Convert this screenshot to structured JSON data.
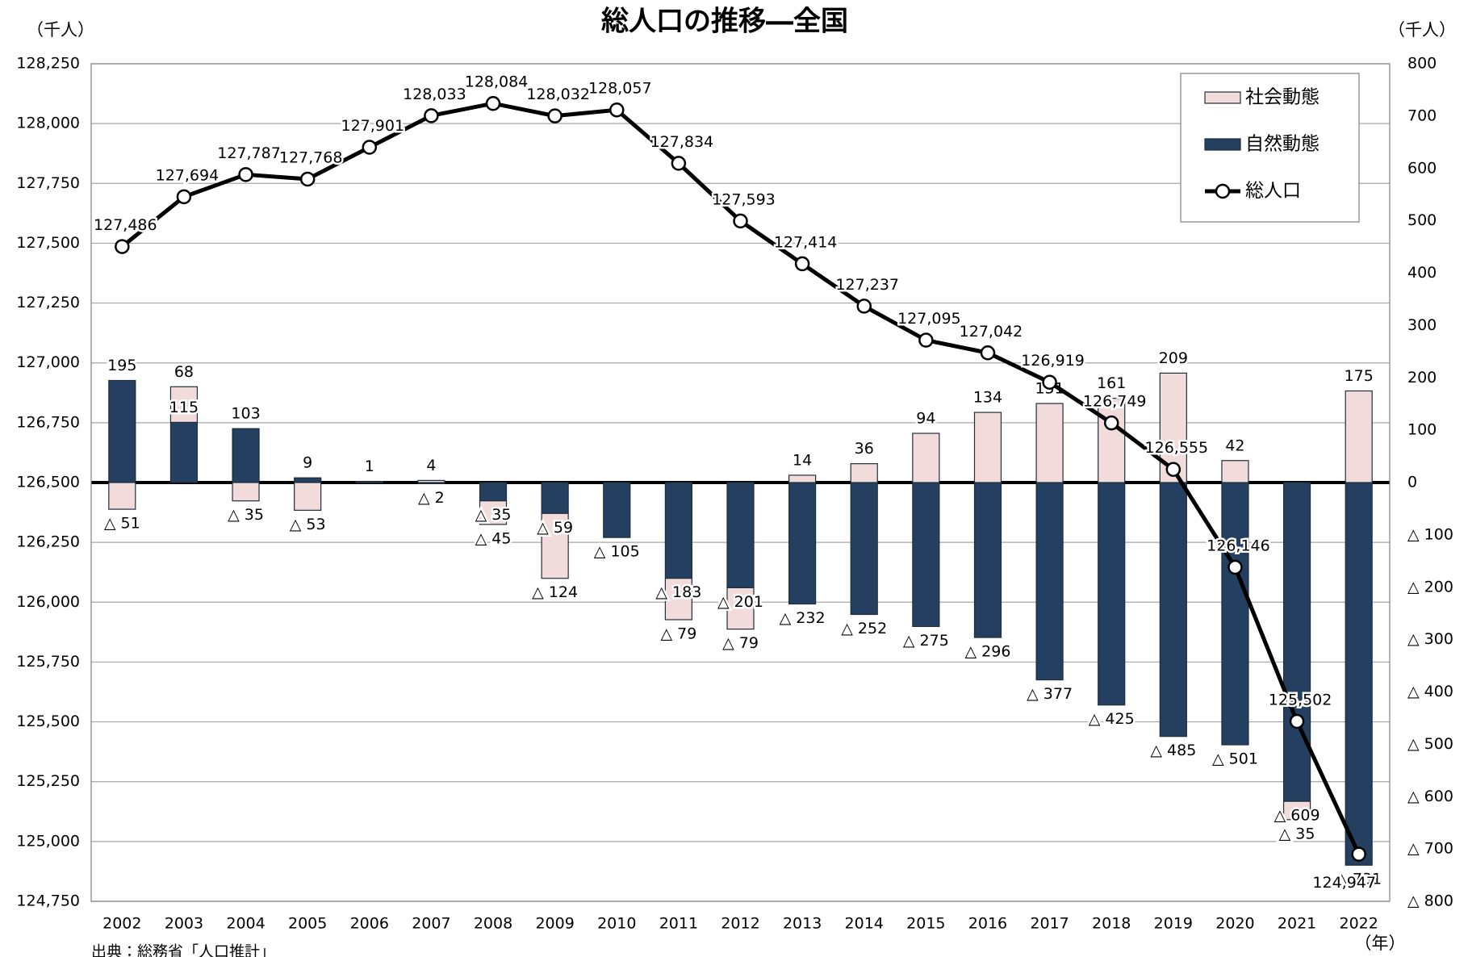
{
  "chart_data": {
    "type": "combo",
    "title": "総人口の推移―全国",
    "y_label": "（千人）",
    "y2_label": "（千人）",
    "x_label": "（年）",
    "source": "出典：総務省「人口推計」",
    "categories": [
      "2002",
      "2003",
      "2004",
      "2005",
      "2006",
      "2007",
      "2008",
      "2009",
      "2010",
      "2011",
      "2012",
      "2013",
      "2014",
      "2015",
      "2016",
      "2017",
      "2018",
      "2019",
      "2020",
      "2021",
      "2022"
    ],
    "series": [
      {
        "name": "社会動態",
        "type": "bar",
        "axis": "y2",
        "color": "#f2dcdb",
        "values": [
          -51,
          68,
          -35,
          -53,
          1,
          4,
          -45,
          -124,
          null,
          -79,
          -79,
          14,
          36,
          94,
          134,
          151,
          161,
          209,
          42,
          -35,
          175
        ],
        "value_labels": [
          "△ 51",
          "68",
          "△ 35",
          "△ 53",
          "1",
          "4",
          "△ 45",
          "△ 124",
          null,
          "△ 79",
          "△ 79",
          "14",
          "36",
          "94",
          "134",
          "151",
          "161",
          "209",
          "42",
          "△ 35",
          "175"
        ]
      },
      {
        "name": "自然動態",
        "type": "bar",
        "axis": "y2",
        "color": "#243f60",
        "values": [
          195,
          115,
          103,
          9,
          1,
          -2,
          -35,
          -59,
          -105,
          -183,
          -201,
          -232,
          -252,
          -275,
          -296,
          -377,
          -425,
          -485,
          -501,
          -609,
          -731
        ],
        "value_labels": [
          "195",
          "115",
          "103",
          "9",
          "1",
          "△ 2",
          "△ 35",
          "△ 59",
          "△ 105",
          "△ 183",
          "△ 201",
          "△ 232",
          "△ 252",
          "△ 275",
          "△ 296",
          "△ 377",
          "△ 425",
          "△ 485",
          "△ 501",
          "△ 609",
          "△ 731"
        ]
      },
      {
        "name": "総人口",
        "type": "line",
        "color": "#000000",
        "values": [
          127486,
          127694,
          127787,
          127768,
          127901,
          128033,
          128084,
          128032,
          128057,
          127834,
          127593,
          127414,
          127237,
          127095,
          127042,
          126919,
          126749,
          126555,
          126146,
          125502,
          124947
        ],
        "value_labels": [
          "127,486",
          "127,694",
          "127,787",
          "127,768",
          "127,901",
          "128,033",
          "128,084",
          "128,032",
          "128,057",
          "127,834",
          "127,593",
          "127,414",
          "127,237",
          "127,095",
          "127,042",
          "126,919",
          "126,749",
          "126,555",
          "126,146",
          "125,502",
          "124,947"
        ]
      }
    ],
    "ylim": [
      124750,
      128250
    ],
    "yticks": [
      {
        "value": 124750,
        "label": "124,750"
      },
      {
        "value": 125000,
        "label": "125,000"
      },
      {
        "value": 125250,
        "label": "125,250"
      },
      {
        "value": 125500,
        "label": "125,500"
      },
      {
        "value": 125750,
        "label": "125,750"
      },
      {
        "value": 126000,
        "label": "126,000"
      },
      {
        "value": 126250,
        "label": "126,250"
      },
      {
        "value": 126500,
        "label": "126,500"
      },
      {
        "value": 126750,
        "label": "126,750"
      },
      {
        "value": 127000,
        "label": "127,000"
      },
      {
        "value": 127250,
        "label": "127,250"
      },
      {
        "value": 127500,
        "label": "127,500"
      },
      {
        "value": 127750,
        "label": "127,750"
      },
      {
        "value": 128000,
        "label": "128,000"
      },
      {
        "value": 128250,
        "label": "128,250"
      }
    ],
    "y2lim": [
      -800,
      800
    ],
    "y2ticks": [
      {
        "value": -800,
        "label": "△ 800"
      },
      {
        "value": -700,
        "label": "△ 700"
      },
      {
        "value": -600,
        "label": "△ 600"
      },
      {
        "value": -500,
        "label": "△ 500"
      },
      {
        "value": -400,
        "label": "△ 400"
      },
      {
        "value": -300,
        "label": "△ 300"
      },
      {
        "value": -200,
        "label": "△ 200"
      },
      {
        "value": -100,
        "label": "△ 100"
      },
      0,
      100,
      200,
      300,
      400,
      500,
      600,
      700,
      800
    ],
    "grid": true,
    "legend": "upper right"
  }
}
